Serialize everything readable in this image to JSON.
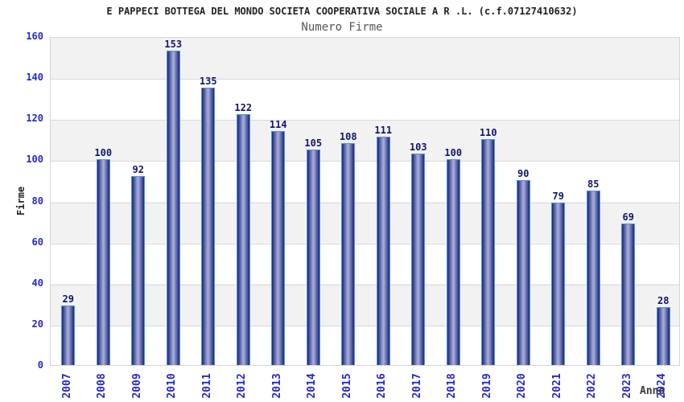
{
  "chart_data": {
    "type": "bar",
    "title": "E PAPPECI BOTTEGA DEL MONDO SOCIETA COOPERATIVA SOCIALE A R .L. (c.f.07127410632)",
    "subtitle": "Numero Firme",
    "xlabel": "Anno",
    "ylabel": "Firme",
    "categories": [
      "2007",
      "2008",
      "2009",
      "2010",
      "2011",
      "2012",
      "2013",
      "2014",
      "2015",
      "2016",
      "2017",
      "2018",
      "2019",
      "2020",
      "2021",
      "2022",
      "2023",
      "2024"
    ],
    "values": [
      29,
      100,
      92,
      153,
      135,
      122,
      114,
      105,
      108,
      111,
      103,
      100,
      110,
      90,
      79,
      85,
      69,
      28
    ],
    "ylim": [
      0,
      160
    ],
    "yticks": [
      0,
      20,
      40,
      60,
      80,
      100,
      120,
      140,
      160
    ],
    "grid": true,
    "legend_position": "none",
    "colors": {
      "bar_edge_dark": "#1e2572",
      "bar_center_light": "#a3abd8",
      "bar_outline": "#4f94ea",
      "tick_label_blue": "#2727cc",
      "value_label_navy": "#12156b",
      "band_gray": "#f2f2f2",
      "band_white": "#ffffff",
      "gridline": "#d8d8d8",
      "title_text": "#222222",
      "subtitle_text": "#555555"
    }
  }
}
